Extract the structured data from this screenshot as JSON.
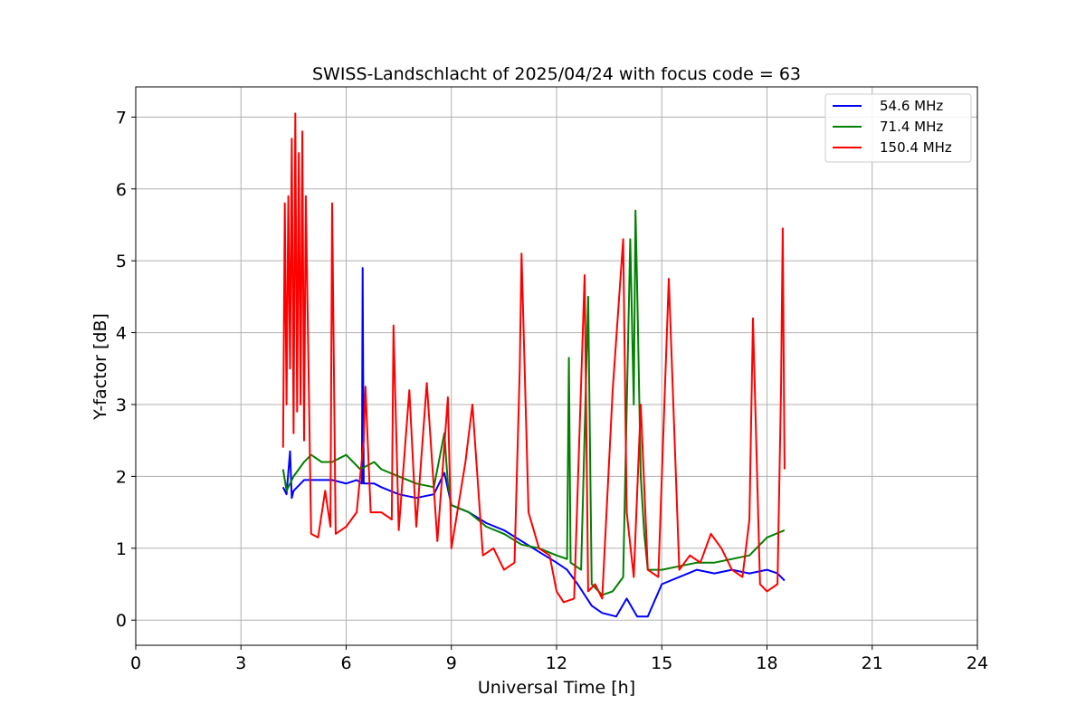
{
  "chart_data": {
    "type": "line",
    "title": "SWISS-Landschlacht of 2025/04/24 with focus code = 63",
    "xlabel": "Universal Time [h]",
    "ylabel": "Y-factor [dB]",
    "xlim": [
      0,
      24
    ],
    "ylim": [
      -0.35,
      7.42
    ],
    "xticks": [
      0,
      3,
      6,
      9,
      12,
      15,
      18,
      21,
      24
    ],
    "xtick_labels": [
      "0",
      "3",
      "6",
      "9",
      "12",
      "15",
      "18",
      "21",
      "24"
    ],
    "yticks": [
      0,
      1,
      2,
      3,
      4,
      5,
      6,
      7
    ],
    "ytick_labels": [
      "0",
      "1",
      "2",
      "3",
      "4",
      "5",
      "6",
      "7"
    ],
    "grid": true,
    "legend_position": "top-right",
    "series": [
      {
        "name": "54.6 MHz",
        "color": "#0000ff",
        "x": [
          4.2,
          4.3,
          4.4,
          4.45,
          4.5,
          4.6,
          4.8,
          5.0,
          5.3,
          5.6,
          6.0,
          6.3,
          6.45,
          6.47,
          6.5,
          6.8,
          7.0,
          7.5,
          8.0,
          8.5,
          8.8,
          9.0,
          9.5,
          10.0,
          10.5,
          11.0,
          11.5,
          12.0,
          12.3,
          12.6,
          13.0,
          13.3,
          13.7,
          14.0,
          14.3,
          14.6,
          15.0,
          15.5,
          16.0,
          16.5,
          17.0,
          17.5,
          18.0,
          18.3,
          18.5
        ],
        "y": [
          1.85,
          1.75,
          2.35,
          1.7,
          1.8,
          1.85,
          1.95,
          1.95,
          1.95,
          1.95,
          1.9,
          1.95,
          1.9,
          4.9,
          1.9,
          1.9,
          1.85,
          1.75,
          1.7,
          1.75,
          2.05,
          1.6,
          1.5,
          1.35,
          1.25,
          1.1,
          0.95,
          0.8,
          0.7,
          0.5,
          0.2,
          0.1,
          0.05,
          0.3,
          0.05,
          0.05,
          0.5,
          0.6,
          0.7,
          0.65,
          0.7,
          0.65,
          0.7,
          0.65,
          0.55
        ]
      },
      {
        "name": "71.4 MHz",
        "color": "#008000",
        "x": [
          4.2,
          4.3,
          4.5,
          4.8,
          5.0,
          5.3,
          5.6,
          6.0,
          6.4,
          6.8,
          7.0,
          7.5,
          8.0,
          8.5,
          8.8,
          8.9,
          9.0,
          9.5,
          10.0,
          10.5,
          11.0,
          11.5,
          12.0,
          12.3,
          12.35,
          12.4,
          12.7,
          12.9,
          13.0,
          13.3,
          13.6,
          13.9,
          14.1,
          14.2,
          14.25,
          14.3,
          14.4,
          14.5,
          14.6,
          15.0,
          15.5,
          16.0,
          16.5,
          17.0,
          17.5,
          18.0,
          18.5
        ],
        "y": [
          2.1,
          1.8,
          2.0,
          2.2,
          2.3,
          2.2,
          2.2,
          2.3,
          2.1,
          2.2,
          2.1,
          2.0,
          1.9,
          1.85,
          2.6,
          1.9,
          1.6,
          1.5,
          1.3,
          1.2,
          1.05,
          1.0,
          0.9,
          0.85,
          3.65,
          0.8,
          0.7,
          4.5,
          0.5,
          0.35,
          0.4,
          0.6,
          5.3,
          3.0,
          5.7,
          4.6,
          2.0,
          1.2,
          0.7,
          0.7,
          0.75,
          0.8,
          0.8,
          0.85,
          0.9,
          1.15,
          1.25
        ]
      },
      {
        "name": "150.4 MHz",
        "color": "#ff0000",
        "x": [
          4.2,
          4.25,
          4.3,
          4.35,
          4.4,
          4.45,
          4.5,
          4.55,
          4.6,
          4.65,
          4.7,
          4.75,
          4.8,
          4.85,
          5.0,
          5.2,
          5.4,
          5.55,
          5.6,
          5.7,
          6.0,
          6.3,
          6.5,
          6.55,
          6.7,
          7.0,
          7.3,
          7.35,
          7.5,
          7.8,
          8.0,
          8.3,
          8.6,
          8.9,
          9.0,
          9.4,
          9.6,
          9.9,
          10.2,
          10.5,
          10.8,
          10.95,
          11.0,
          11.2,
          11.5,
          11.8,
          12.0,
          12.2,
          12.5,
          12.8,
          12.9,
          13.1,
          13.3,
          13.6,
          13.9,
          14.0,
          14.2,
          14.4,
          14.6,
          14.9,
          15.2,
          15.5,
          15.8,
          16.1,
          16.4,
          16.7,
          17.0,
          17.3,
          17.5,
          17.6,
          17.8,
          18.0,
          18.3,
          18.4,
          18.45,
          18.5
        ],
        "y": [
          2.4,
          5.8,
          3.0,
          5.9,
          3.5,
          6.7,
          2.6,
          7.05,
          2.9,
          6.5,
          3.0,
          6.8,
          2.5,
          5.9,
          1.2,
          1.15,
          1.8,
          1.3,
          5.8,
          1.2,
          1.3,
          1.5,
          2.5,
          3.25,
          1.5,
          1.5,
          1.4,
          4.1,
          1.25,
          3.2,
          1.3,
          3.3,
          1.1,
          3.1,
          1.0,
          2.2,
          3.0,
          0.9,
          1.0,
          0.7,
          0.8,
          3.5,
          5.1,
          1.5,
          1.0,
          0.9,
          0.4,
          0.25,
          0.3,
          4.8,
          0.4,
          0.5,
          0.3,
          3.2,
          5.3,
          1.5,
          0.6,
          3.0,
          0.7,
          0.6,
          4.75,
          0.7,
          0.9,
          0.8,
          1.2,
          1.0,
          0.7,
          0.6,
          1.4,
          4.2,
          0.5,
          0.4,
          0.5,
          3.2,
          5.45,
          2.1
        ]
      }
    ]
  }
}
